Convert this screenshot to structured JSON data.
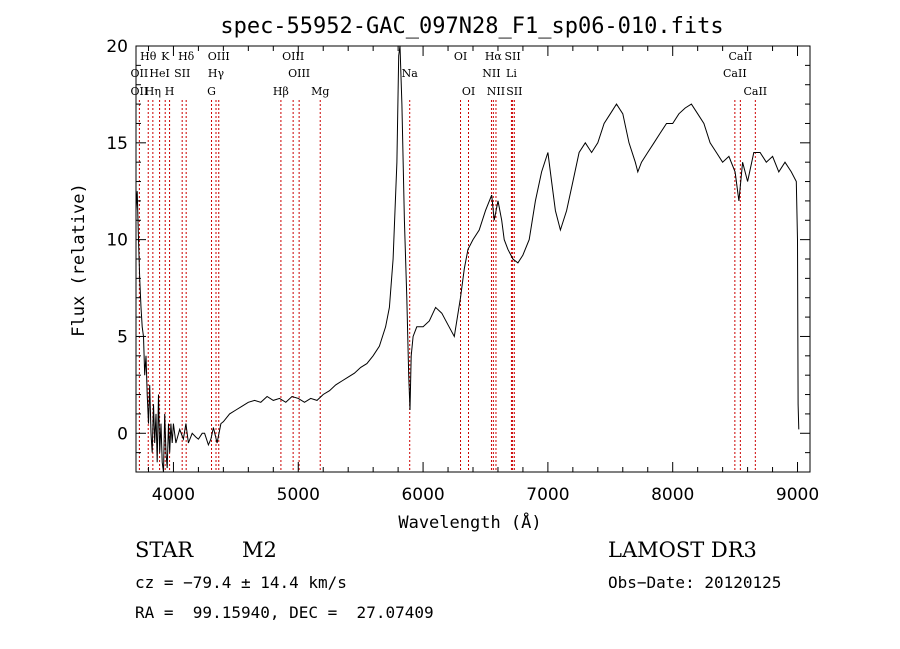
{
  "chart_data": {
    "type": "line",
    "title": "spec-55952-GAC_097N28_F1_sp06-010.fits",
    "xlabel": "Wavelength (Å)",
    "ylabel": "Flux (relative)",
    "xlim": [
      3700,
      9100
    ],
    "ylim": [
      -2,
      20
    ],
    "xticks": [
      4000,
      5000,
      6000,
      7000,
      8000,
      9000
    ],
    "yticks": [
      0,
      5,
      10,
      15,
      20
    ],
    "grid": false,
    "series": [
      {
        "points": [
          [
            3700,
            11.5
          ],
          [
            3710,
            12.5
          ],
          [
            3720,
            10
          ],
          [
            3730,
            8
          ],
          [
            3740,
            6.5
          ],
          [
            3750,
            5.5
          ],
          [
            3760,
            5
          ],
          [
            3770,
            3
          ],
          [
            3780,
            4
          ],
          [
            3790,
            2
          ],
          [
            3800,
            0.5
          ],
          [
            3810,
            2.5
          ],
          [
            3820,
            0
          ],
          [
            3830,
            -1
          ],
          [
            3840,
            1.5
          ],
          [
            3850,
            -0.5
          ],
          [
            3860,
            1
          ],
          [
            3870,
            -1.5
          ],
          [
            3880,
            2
          ],
          [
            3890,
            -1
          ],
          [
            3900,
            0.5
          ],
          [
            3910,
            -1.5
          ],
          [
            3920,
            -2
          ],
          [
            3930,
            1
          ],
          [
            3940,
            -1
          ],
          [
            3950,
            -1.8
          ],
          [
            3960,
            0.5
          ],
          [
            3970,
            -1
          ],
          [
            3980,
            0.5
          ],
          [
            3990,
            -0.5
          ],
          [
            4000,
            0.5
          ],
          [
            4020,
            -0.5
          ],
          [
            4050,
            0.2
          ],
          [
            4080,
            -0.3
          ],
          [
            4100,
            0.5
          ],
          [
            4120,
            -0.5
          ],
          [
            4150,
            0
          ],
          [
            4180,
            -0.2
          ],
          [
            4200,
            -0.3
          ],
          [
            4230,
            0
          ],
          [
            4250,
            0
          ],
          [
            4280,
            -0.6
          ],
          [
            4300,
            -0.3
          ],
          [
            4320,
            0.3
          ],
          [
            4350,
            -0.5
          ],
          [
            4380,
            0.5
          ],
          [
            4400,
            0.6
          ],
          [
            4450,
            1
          ],
          [
            4500,
            1.2
          ],
          [
            4550,
            1.4
          ],
          [
            4600,
            1.6
          ],
          [
            4650,
            1.7
          ],
          [
            4700,
            1.6
          ],
          [
            4750,
            1.9
          ],
          [
            4800,
            1.7
          ],
          [
            4850,
            1.8
          ],
          [
            4900,
            1.6
          ],
          [
            4950,
            1.9
          ],
          [
            5000,
            1.8
          ],
          [
            5050,
            1.6
          ],
          [
            5100,
            1.8
          ],
          [
            5150,
            1.7
          ],
          [
            5200,
            2
          ],
          [
            5250,
            2.2
          ],
          [
            5300,
            2.5
          ],
          [
            5350,
            2.7
          ],
          [
            5400,
            2.9
          ],
          [
            5450,
            3.1
          ],
          [
            5500,
            3.4
          ],
          [
            5550,
            3.6
          ],
          [
            5600,
            4
          ],
          [
            5650,
            4.5
          ],
          [
            5700,
            5.5
          ],
          [
            5730,
            6.5
          ],
          [
            5760,
            9
          ],
          [
            5790,
            14
          ],
          [
            5805,
            19.5
          ],
          [
            5815,
            20.5
          ],
          [
            5830,
            17
          ],
          [
            5850,
            11
          ],
          [
            5870,
            7
          ],
          [
            5885,
            3
          ],
          [
            5895,
            1.2
          ],
          [
            5905,
            4
          ],
          [
            5920,
            5
          ],
          [
            5950,
            5.5
          ],
          [
            6000,
            5.5
          ],
          [
            6050,
            5.8
          ],
          [
            6100,
            6.5
          ],
          [
            6150,
            6.2
          ],
          [
            6200,
            5.6
          ],
          [
            6250,
            5
          ],
          [
            6300,
            7
          ],
          [
            6330,
            8.5
          ],
          [
            6360,
            9.5
          ],
          [
            6400,
            10
          ],
          [
            6450,
            10.5
          ],
          [
            6500,
            11.5
          ],
          [
            6550,
            12.3
          ],
          [
            6570,
            11
          ],
          [
            6600,
            12
          ],
          [
            6630,
            11
          ],
          [
            6650,
            10
          ],
          [
            6680,
            9.5
          ],
          [
            6720,
            9
          ],
          [
            6760,
            8.8
          ],
          [
            6800,
            9.2
          ],
          [
            6850,
            10
          ],
          [
            6900,
            12
          ],
          [
            6950,
            13.5
          ],
          [
            7000,
            14.5
          ],
          [
            7030,
            13
          ],
          [
            7060,
            11.5
          ],
          [
            7100,
            10.5
          ],
          [
            7150,
            11.5
          ],
          [
            7200,
            13
          ],
          [
            7250,
            14.5
          ],
          [
            7300,
            15
          ],
          [
            7350,
            14.5
          ],
          [
            7400,
            15
          ],
          [
            7450,
            16
          ],
          [
            7500,
            16.5
          ],
          [
            7550,
            17
          ],
          [
            7600,
            16.5
          ],
          [
            7650,
            15
          ],
          [
            7700,
            14
          ],
          [
            7720,
            13.5
          ],
          [
            7750,
            14
          ],
          [
            7800,
            14.5
          ],
          [
            7850,
            15
          ],
          [
            7900,
            15.5
          ],
          [
            7950,
            16
          ],
          [
            8000,
            16
          ],
          [
            8050,
            16.5
          ],
          [
            8100,
            16.8
          ],
          [
            8150,
            17
          ],
          [
            8200,
            16.5
          ],
          [
            8250,
            16
          ],
          [
            8300,
            15
          ],
          [
            8350,
            14.5
          ],
          [
            8400,
            14
          ],
          [
            8450,
            14.3
          ],
          [
            8500,
            13.5
          ],
          [
            8530,
            12
          ],
          [
            8560,
            14
          ],
          [
            8600,
            13
          ],
          [
            8650,
            14.5
          ],
          [
            8700,
            14.5
          ],
          [
            8750,
            14
          ],
          [
            8800,
            14.3
          ],
          [
            8850,
            13.5
          ],
          [
            8900,
            14
          ],
          [
            8950,
            13.5
          ],
          [
            8990,
            13
          ],
          [
            9000,
            10
          ],
          [
            9005,
            1.5
          ],
          [
            9010,
            0.2
          ]
        ]
      }
    ],
    "lines": [
      {
        "label": "Hθ",
        "x": 3798,
        "row": 0
      },
      {
        "label": "OII",
        "x": 3727,
        "row": 1
      },
      {
        "label": "OII",
        "x": 3727,
        "row": 2
      },
      {
        "label": "Hη",
        "x": 3835,
        "row": 2
      },
      {
        "label": "HeI",
        "x": 3889,
        "row": 1
      },
      {
        "label": "K",
        "x": 3934,
        "row": 0
      },
      {
        "label": "H",
        "x": 3969,
        "row": 2
      },
      {
        "label": "SII",
        "x": 4070,
        "row": 1
      },
      {
        "label": "Hδ",
        "x": 4102,
        "row": 0
      },
      {
        "label": "OIII",
        "x": 4363,
        "row": 0
      },
      {
        "label": "Hγ",
        "x": 4341,
        "row": 1
      },
      {
        "label": "G",
        "x": 4305,
        "row": 2
      },
      {
        "label": "Hβ",
        "x": 4861,
        "row": 2
      },
      {
        "label": "OIII",
        "x": 4959,
        "row": 0
      },
      {
        "label": "OIII",
        "x": 5007,
        "row": 1
      },
      {
        "label": "Mg",
        "x": 5176,
        "row": 2
      },
      {
        "label": "Na",
        "x": 5893,
        "row": 1
      },
      {
        "label": "OI",
        "x": 6300,
        "row": 0
      },
      {
        "label": "OI",
        "x": 6364,
        "row": 2
      },
      {
        "label": "Hα",
        "x": 6563,
        "row": 0
      },
      {
        "label": "NII",
        "x": 6548,
        "row": 1
      },
      {
        "label": "NII",
        "x": 6584,
        "row": 2
      },
      {
        "label": "SII",
        "x": 6717,
        "row": 0
      },
      {
        "label": "Li",
        "x": 6708,
        "row": 1
      },
      {
        "label": "SII",
        "x": 6731,
        "row": 2
      },
      {
        "label": "CaII",
        "x": 8542,
        "row": 0
      },
      {
        "label": "CaII",
        "x": 8498,
        "row": 1
      },
      {
        "label": "CaII",
        "x": 8662,
        "row": 2
      }
    ]
  },
  "info": {
    "object_class": "STAR",
    "subclass": "M2",
    "survey": "LAMOST DR3",
    "cz": "cz = −79.4 ± 14.4 km/s",
    "obs_date": "Obs−Date: 20120125",
    "coords": "RA =  99.15940, DEC =  27.07409"
  }
}
